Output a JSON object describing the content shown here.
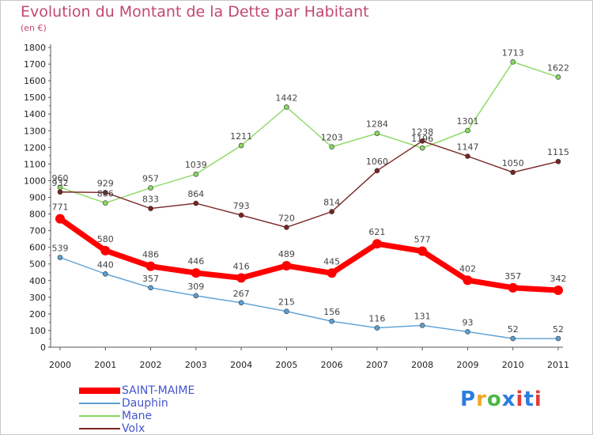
{
  "title": "Evolution du Montant de la Dette par Habitant",
  "unit": "(en €)",
  "logo": {
    "text": "Proxiti",
    "colors": [
      "#2a7de1",
      "#f2a623",
      "#4db847",
      "#2a7de1",
      "#e23b3b",
      "#2a7de1",
      "#e23b3b"
    ]
  },
  "chart_data": {
    "type": "line",
    "x": [
      2000,
      2001,
      2002,
      2003,
      2004,
      2005,
      2006,
      2007,
      2008,
      2009,
      2010,
      2011
    ],
    "ylim": [
      0,
      1800
    ],
    "yticks": [
      0,
      100,
      200,
      300,
      400,
      500,
      600,
      700,
      800,
      900,
      1000,
      1100,
      1200,
      1300,
      1400,
      1500,
      1600,
      1700,
      1800
    ],
    "grid": false,
    "legend_position": "bottom-left",
    "series": [
      {
        "name": "SAINT-MAIME",
        "color": "#ff0000",
        "width": 7,
        "marker": 6,
        "values": [
          771,
          580,
          486,
          446,
          416,
          489,
          445,
          621,
          577,
          402,
          357,
          342
        ]
      },
      {
        "name": "Dauphin",
        "color": "#5a9fd4",
        "width": 1.4,
        "marker": 3,
        "values": [
          539,
          440,
          357,
          309,
          267,
          215,
          156,
          116,
          131,
          93,
          52,
          52
        ]
      },
      {
        "name": "Mane",
        "color": "#88d860",
        "width": 1.4,
        "marker": 3,
        "values": [
          960,
          866,
          957,
          1039,
          1211,
          1442,
          1203,
          1284,
          1196,
          1301,
          1713,
          1622
        ]
      },
      {
        "name": "Volx",
        "color": "#7a2323",
        "width": 1.4,
        "marker": 3,
        "values": [
          932,
          929,
          833,
          864,
          793,
          720,
          814,
          1060,
          1238,
          1147,
          1050,
          1115
        ]
      }
    ]
  }
}
